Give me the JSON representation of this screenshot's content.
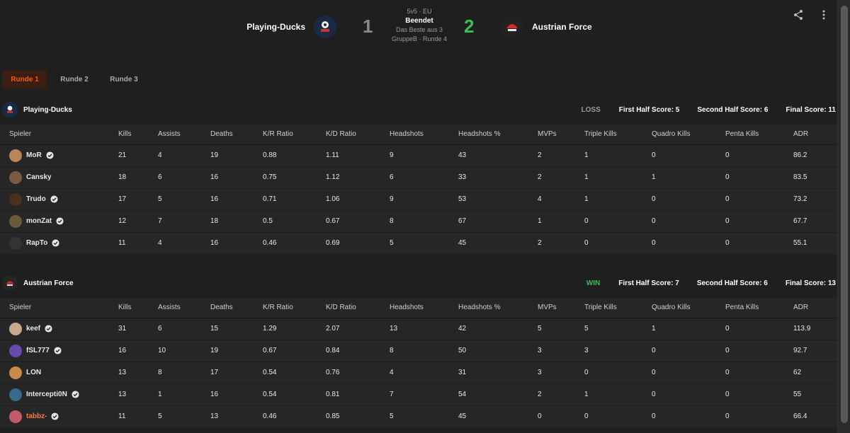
{
  "match": {
    "team1": {
      "name": "Playing-Ducks",
      "score": "1"
    },
    "team2": {
      "name": "Austrian Force",
      "score": "2"
    },
    "mode": "5v5 · EU",
    "status": "Beendet",
    "format": "Das Beste aus 3",
    "stage": "GruppeB · Runde 4"
  },
  "tabs": [
    "Runde 1",
    "Runde 2",
    "Runde 3"
  ],
  "columns": [
    "Spieler",
    "Kills",
    "Assists",
    "Deaths",
    "K/R Ratio",
    "K/D Ratio",
    "Headshots",
    "Headshots %",
    "MVPs",
    "Triple Kills",
    "Quadro Kills",
    "Penta Kills",
    "ADR"
  ],
  "teams": [
    {
      "name": "Playing-Ducks",
      "result": "LOSS",
      "first_half": "First Half Score: 5",
      "second_half": "Second Half Score: 6",
      "final": "Final Score: 11",
      "players": [
        [
          "MoR",
          "21",
          "4",
          "19",
          "0.88",
          "1.11",
          "9",
          "43",
          "2",
          "1",
          "0",
          "0",
          "86.2"
        ],
        [
          "Cansky",
          "18",
          "6",
          "16",
          "0.75",
          "1.12",
          "6",
          "33",
          "2",
          "1",
          "1",
          "0",
          "83.5"
        ],
        [
          "Trudo",
          "17",
          "5",
          "16",
          "0.71",
          "1.06",
          "9",
          "53",
          "4",
          "1",
          "0",
          "0",
          "73.2"
        ],
        [
          "monZat",
          "12",
          "7",
          "18",
          "0.5",
          "0.67",
          "8",
          "67",
          "1",
          "0",
          "0",
          "0",
          "67.7"
        ],
        [
          "RapTo",
          "11",
          "4",
          "16",
          "0.46",
          "0.69",
          "5",
          "45",
          "2",
          "0",
          "0",
          "0",
          "55.1"
        ]
      ],
      "verified": [
        true,
        false,
        true,
        true,
        true
      ]
    },
    {
      "name": "Austrian Force",
      "result": "WIN",
      "first_half": "First Half Score: 7",
      "second_half": "Second Half Score: 6",
      "final": "Final Score: 13",
      "players": [
        [
          "keef",
          "31",
          "6",
          "15",
          "1.29",
          "2.07",
          "13",
          "42",
          "5",
          "5",
          "1",
          "0",
          "113.9"
        ],
        [
          "fSL777",
          "16",
          "10",
          "19",
          "0.67",
          "0.84",
          "8",
          "50",
          "3",
          "3",
          "0",
          "0",
          "92.7"
        ],
        [
          "LON",
          "13",
          "8",
          "17",
          "0.54",
          "0.76",
          "4",
          "31",
          "3",
          "0",
          "0",
          "0",
          "62"
        ],
        [
          "Intercepti0N",
          "13",
          "1",
          "16",
          "0.54",
          "0.81",
          "7",
          "54",
          "2",
          "1",
          "0",
          "0",
          "55"
        ],
        [
          "tabbz-",
          "11",
          "5",
          "13",
          "0.46",
          "0.85",
          "5",
          "45",
          "0",
          "0",
          "0",
          "0",
          "66.4"
        ]
      ],
      "verified": [
        true,
        true,
        false,
        true,
        true
      ]
    }
  ],
  "colors": {
    "accent": "#ff5500",
    "win": "#33c24d",
    "loss": "#9a9a9a",
    "background": "#1f1f1f",
    "table": "#262626"
  }
}
